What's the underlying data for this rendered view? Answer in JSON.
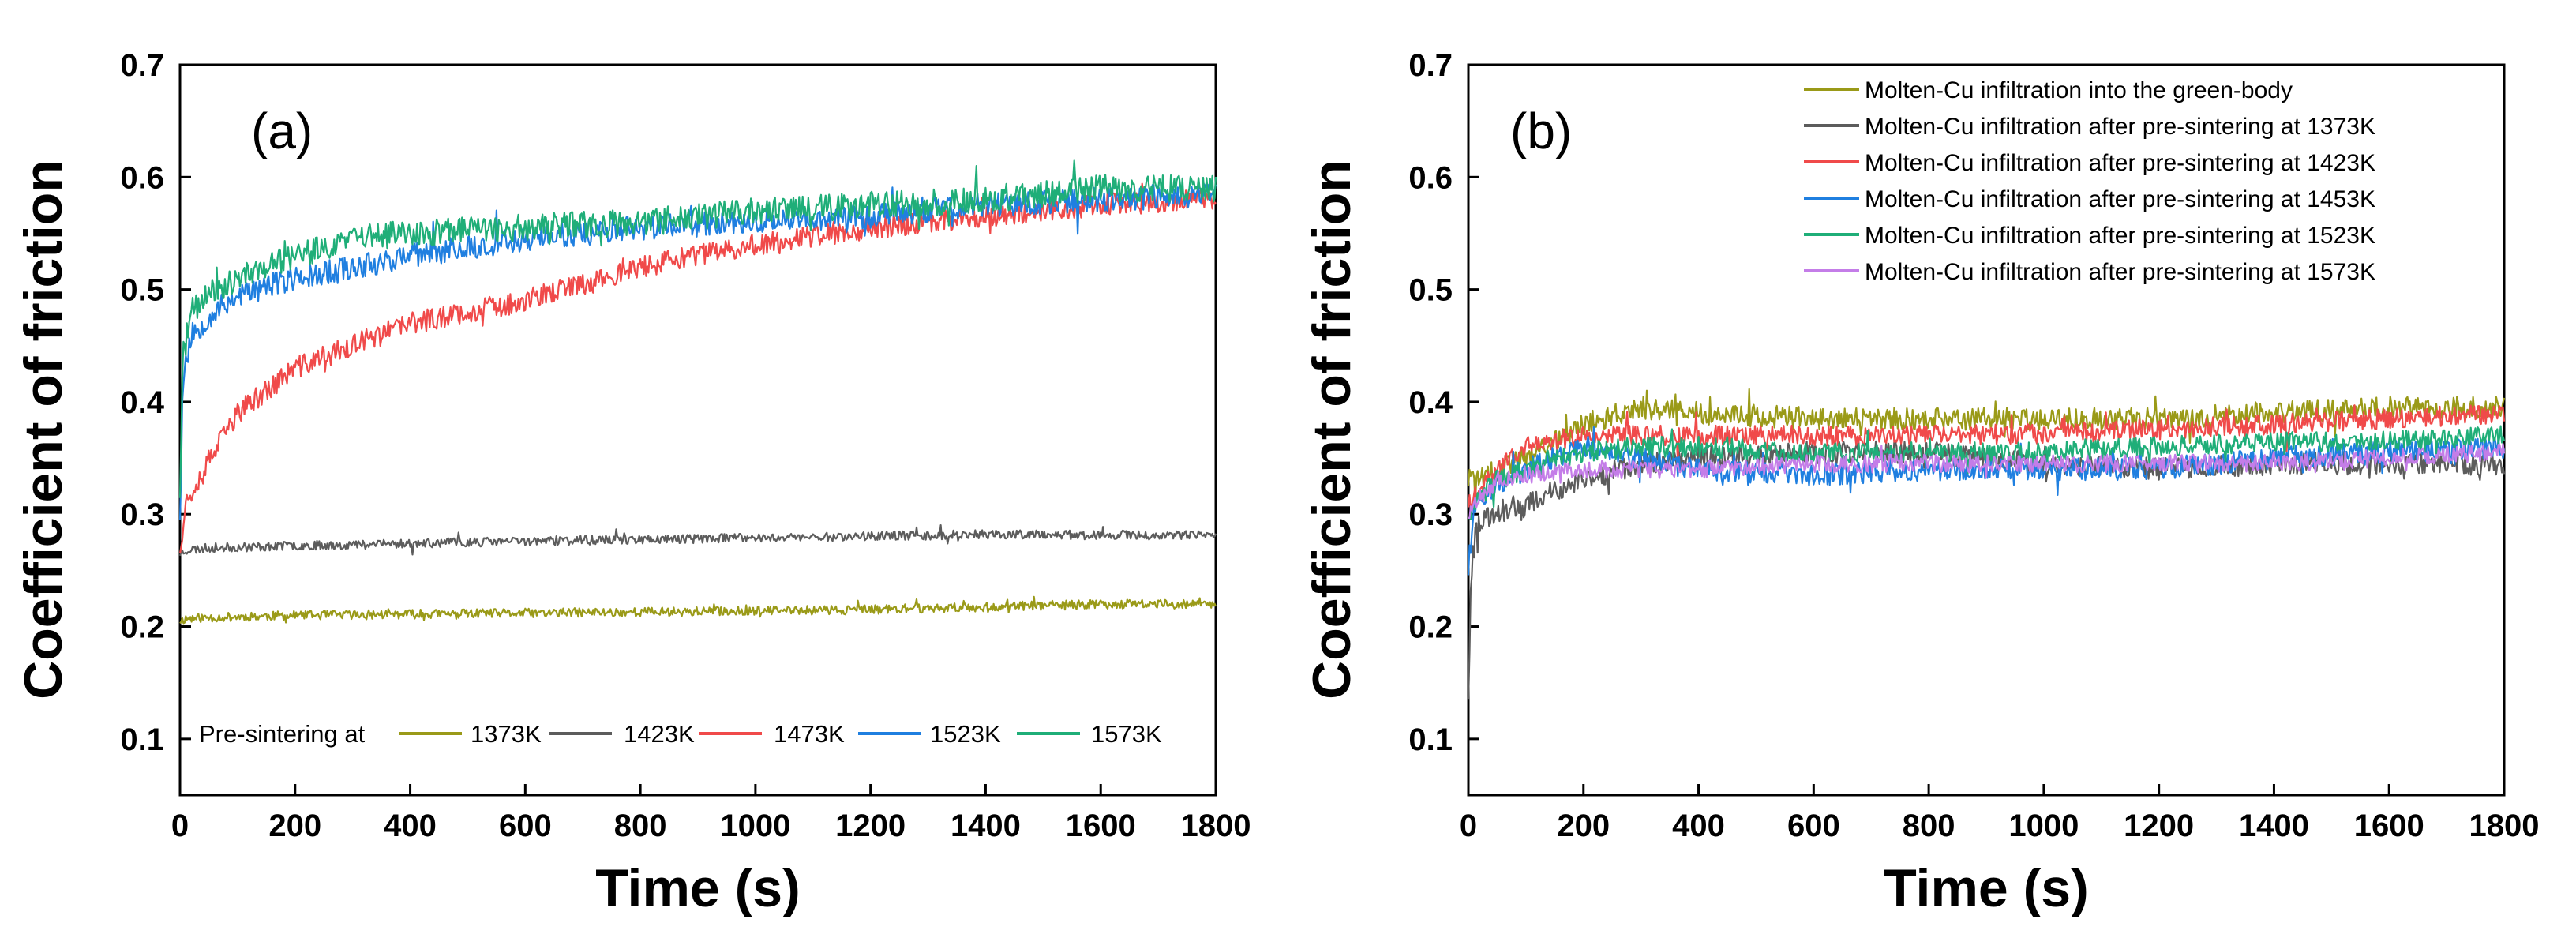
{
  "colors": {
    "olive": "#9a9a18",
    "gray": "#5c5c5c",
    "red": "#f04a4a",
    "blue": "#1f7fe0",
    "green": "#1fae78",
    "purple": "#c47de8"
  },
  "chart_data": [
    {
      "panel": "(a)",
      "type": "line",
      "xlabel": "Time (s)",
      "ylabel": "Coefficient of friction",
      "xlim": [
        0,
        1800
      ],
      "ylim": [
        0.05,
        0.7
      ],
      "xticks": [
        0,
        200,
        400,
        600,
        800,
        1000,
        1200,
        1400,
        1600,
        1800
      ],
      "yticks": [
        0.1,
        0.2,
        0.3,
        0.4,
        0.5,
        0.6,
        0.7
      ],
      "legend_title": "Pre-sintering at",
      "legend_position": "bottom",
      "series": [
        {
          "name": "1373K",
          "color_key": "olive",
          "noise": 0.004,
          "seed": 11,
          "x": [
            0,
            10,
            50,
            200,
            600,
            800,
            1200,
            1600,
            1800
          ],
          "y": [
            0.205,
            0.207,
            0.208,
            0.21,
            0.212,
            0.213,
            0.215,
            0.22,
            0.22
          ]
        },
        {
          "name": "1423K",
          "color_key": "gray",
          "noise": 0.004,
          "seed": 23,
          "x": [
            0,
            10,
            50,
            200,
            600,
            1000,
            1400,
            1800
          ],
          "y": [
            0.265,
            0.268,
            0.27,
            0.272,
            0.276,
            0.279,
            0.282,
            0.281
          ]
        },
        {
          "name": "1473K",
          "color_key": "red",
          "noise": 0.01,
          "seed": 37,
          "x": [
            0,
            10,
            30,
            100,
            200,
            300,
            400,
            500,
            600,
            700,
            800,
            1000,
            1200,
            1400,
            1600,
            1800
          ],
          "y": [
            0.27,
            0.31,
            0.33,
            0.39,
            0.43,
            0.45,
            0.47,
            0.48,
            0.49,
            0.505,
            0.52,
            0.54,
            0.555,
            0.565,
            0.575,
            0.58
          ]
        },
        {
          "name": "1523K",
          "color_key": "blue",
          "noise": 0.011,
          "seed": 53,
          "x": [
            0,
            5,
            20,
            60,
            100,
            200,
            300,
            400,
            600,
            800,
            1000,
            1200,
            1400,
            1600,
            1800
          ],
          "y": [
            0.3,
            0.42,
            0.46,
            0.48,
            0.495,
            0.51,
            0.52,
            0.53,
            0.545,
            0.555,
            0.56,
            0.565,
            0.575,
            0.58,
            0.585
          ]
        },
        {
          "name": "1573K",
          "color_key": "green",
          "noise": 0.012,
          "seed": 71,
          "x": [
            0,
            5,
            20,
            60,
            100,
            200,
            300,
            400,
            600,
            800,
            1000,
            1200,
            1400,
            1600,
            1800
          ],
          "y": [
            0.32,
            0.44,
            0.48,
            0.5,
            0.51,
            0.53,
            0.545,
            0.55,
            0.555,
            0.56,
            0.57,
            0.575,
            0.58,
            0.59,
            0.59
          ]
        }
      ],
      "legend_entries": [
        {
          "label": "1373K",
          "color_key": "olive"
        },
        {
          "label": "1423K",
          "color_key": "gray"
        },
        {
          "label": "1473K",
          "color_key": "red"
        },
        {
          "label": "1523K",
          "color_key": "blue"
        },
        {
          "label": "1573K",
          "color_key": "green"
        }
      ]
    },
    {
      "panel": "(b)",
      "type": "line",
      "xlabel": "Time (s)",
      "ylabel": "Coefficient of friction",
      "xlim": [
        0,
        1800
      ],
      "ylim": [
        0.05,
        0.7
      ],
      "xticks": [
        0,
        200,
        400,
        600,
        800,
        1000,
        1200,
        1400,
        1600,
        1800
      ],
      "yticks": [
        0.1,
        0.2,
        0.3,
        0.4,
        0.5,
        0.6,
        0.7
      ],
      "legend_position": "top-right",
      "series": [
        {
          "name": "Molten-Cu infiltration into the green-body",
          "color_key": "olive",
          "noise": 0.01,
          "seed": 101,
          "x": [
            0,
            10,
            50,
            100,
            200,
            300,
            400,
            600,
            800,
            1000,
            1200,
            1400,
            1600,
            1800
          ],
          "y": [
            0.33,
            0.33,
            0.34,
            0.35,
            0.38,
            0.395,
            0.39,
            0.385,
            0.385,
            0.385,
            0.385,
            0.39,
            0.395,
            0.395
          ]
        },
        {
          "name": "Molten-Cu infiltration after pre-sintering at 1373K",
          "color_key": "gray",
          "noise": 0.01,
          "seed": 113,
          "x": [
            0,
            5,
            15,
            40,
            100,
            200,
            300,
            400,
            600,
            800,
            1000,
            1200,
            1400,
            1600,
            1800
          ],
          "y": [
            0.14,
            0.25,
            0.29,
            0.3,
            0.31,
            0.33,
            0.345,
            0.35,
            0.355,
            0.355,
            0.345,
            0.34,
            0.345,
            0.345,
            0.345
          ]
        },
        {
          "name": "Molten-Cu infiltration after pre-sintering at 1423K",
          "color_key": "red",
          "noise": 0.009,
          "seed": 127,
          "x": [
            0,
            10,
            50,
            100,
            200,
            300,
            400,
            600,
            800,
            1000,
            1200,
            1400,
            1600,
            1800
          ],
          "y": [
            0.31,
            0.32,
            0.34,
            0.36,
            0.37,
            0.37,
            0.37,
            0.37,
            0.37,
            0.372,
            0.375,
            0.38,
            0.385,
            0.39
          ]
        },
        {
          "name": "Molten-Cu infiltration after pre-sintering at 1453K",
          "color_key": "blue",
          "noise": 0.01,
          "seed": 139,
          "x": [
            0,
            8,
            30,
            100,
            200,
            300,
            400,
            600,
            800,
            1000,
            1200,
            1400,
            1600,
            1800
          ],
          "y": [
            0.25,
            0.3,
            0.32,
            0.34,
            0.36,
            0.35,
            0.34,
            0.335,
            0.34,
            0.34,
            0.34,
            0.35,
            0.355,
            0.36
          ]
        },
        {
          "name": "Molten-Cu infiltration after pre-sintering at 1523K",
          "color_key": "green",
          "noise": 0.009,
          "seed": 151,
          "x": [
            0,
            10,
            50,
            100,
            200,
            300,
            400,
            600,
            800,
            1000,
            1200,
            1400,
            1600,
            1800
          ],
          "y": [
            0.3,
            0.31,
            0.33,
            0.34,
            0.355,
            0.36,
            0.36,
            0.355,
            0.355,
            0.355,
            0.36,
            0.365,
            0.365,
            0.37
          ]
        },
        {
          "name": "Molten-Cu infiltration after pre-sintering at 1573K",
          "color_key": "purple",
          "noise": 0.008,
          "seed": 167,
          "x": [
            0,
            10,
            50,
            100,
            200,
            300,
            400,
            600,
            800,
            1000,
            1200,
            1400,
            1600,
            1800
          ],
          "y": [
            0.3,
            0.31,
            0.33,
            0.335,
            0.34,
            0.34,
            0.34,
            0.345,
            0.345,
            0.345,
            0.345,
            0.345,
            0.35,
            0.355
          ]
        }
      ]
    }
  ]
}
